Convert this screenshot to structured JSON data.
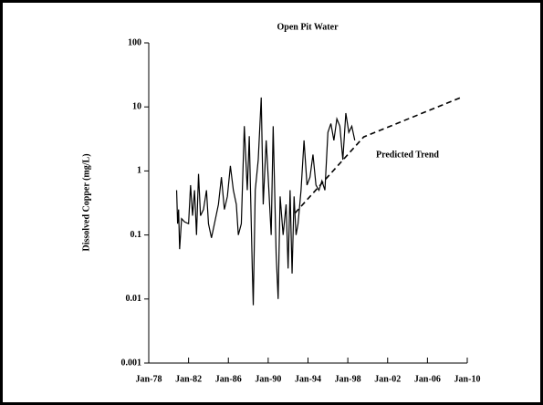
{
  "chart_data": {
    "type": "line",
    "title": "Open Pit Water",
    "y_label": "Dissolved Copper (mg/L)",
    "log_y": true,
    "xlim": [
      1978,
      2010
    ],
    "xticks": [
      {
        "value": 1978,
        "label": "Jan-78"
      },
      {
        "value": 1982,
        "label": "Jan-82"
      },
      {
        "value": 1986,
        "label": "Jan-86"
      },
      {
        "value": 1990,
        "label": "Jan-90"
      },
      {
        "value": 1994,
        "label": "Jan-94"
      },
      {
        "value": 1998,
        "label": "Jan-98"
      },
      {
        "value": 2002,
        "label": "Jan-02"
      },
      {
        "value": 2006,
        "label": "Jan-06"
      },
      {
        "value": 2010,
        "label": "Jan-10"
      }
    ],
    "ylim": [
      0.001,
      100
    ],
    "yticks": [
      0.001,
      0.01,
      0.1,
      1,
      10,
      100
    ],
    "series": [
      {
        "color": "#000000",
        "dashed": false,
        "x": [
          1980.8,
          1980.9,
          1981.0,
          1981.1,
          1981.3,
          1981.6,
          1982.0,
          1982.2,
          1982.4,
          1982.6,
          1982.8,
          1983.0,
          1983.2,
          1983.5,
          1983.8,
          1984.0,
          1984.3,
          1984.6,
          1985.0,
          1985.3,
          1985.6,
          1985.9,
          1986.2,
          1986.5,
          1986.8,
          1987.0,
          1987.3,
          1987.6,
          1987.9,
          1988.1,
          1988.4,
          1988.5,
          1988.7,
          1989.0,
          1989.3,
          1989.5,
          1989.8,
          1990.0,
          1990.3,
          1990.5,
          1990.8,
          1991.0,
          1991.2,
          1991.5,
          1991.8,
          1992.0,
          1992.2,
          1992.4,
          1992.6,
          1992.8,
          1993.0,
          1993.3,
          1993.6,
          1993.9,
          1994.2,
          1994.5,
          1994.8,
          1995.1,
          1995.4,
          1995.7,
          1996.0,
          1996.3,
          1996.6,
          1996.9,
          1997.2,
          1997.5,
          1997.8,
          1998.1,
          1998.4,
          1998.7
        ],
        "values": [
          0.5,
          0.15,
          0.25,
          0.06,
          0.18,
          0.16,
          0.15,
          0.6,
          0.2,
          0.5,
          0.1,
          0.9,
          0.2,
          0.25,
          0.5,
          0.15,
          0.09,
          0.15,
          0.3,
          0.8,
          0.25,
          0.4,
          1.2,
          0.5,
          0.3,
          0.1,
          0.15,
          5,
          0.5,
          3.5,
          0.03,
          0.008,
          0.5,
          1.5,
          14,
          0.3,
          3,
          0.8,
          0.1,
          5,
          0.05,
          0.01,
          0.4,
          0.1,
          0.3,
          0.03,
          0.5,
          0.025,
          0.4,
          0.1,
          0.15,
          0.5,
          3,
          0.6,
          0.8,
          1.8,
          0.6,
          0.5,
          0.7,
          0.5,
          4,
          5.5,
          3,
          6.5,
          5,
          1.5,
          8,
          4,
          5,
          3
        ]
      },
      {
        "name": "Predicted Trend",
        "color": "#000000",
        "dashed": true,
        "x": [
          1992.7,
          1999.6,
          2009.5
        ],
        "values": [
          0.22,
          3.4,
          14.3
        ]
      }
    ]
  }
}
